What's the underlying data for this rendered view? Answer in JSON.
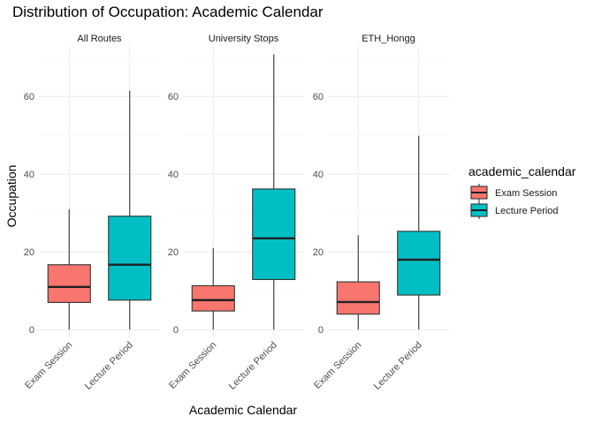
{
  "chart_data": {
    "type": "boxplot",
    "title": "Distribution of Occupation: Academic Calendar",
    "xlabel": "Academic Calendar",
    "ylabel": "Occupation",
    "ylim": [
      -2,
      73
    ],
    "yticks": [
      0,
      20,
      40,
      60
    ],
    "categories": [
      "Exam Session",
      "Lecture Period"
    ],
    "colors": {
      "Exam Session": "#F8766D",
      "Lecture Period": "#00BFC4"
    },
    "legend": {
      "title": "academic_calendar",
      "entries": [
        "Exam Session",
        "Lecture Period"
      ],
      "position": "right"
    },
    "grid": true,
    "panels": [
      {
        "label": "All Routes",
        "boxes": [
          {
            "category": "Exam Session",
            "min": 0,
            "q1": 7,
            "median": 11,
            "q3": 16.7,
            "max": 31
          },
          {
            "category": "Lecture Period",
            "min": 0,
            "q1": 7.6,
            "median": 16.7,
            "q3": 29.2,
            "max": 61.5
          }
        ]
      },
      {
        "label": "University Stops",
        "boxes": [
          {
            "category": "Exam Session",
            "min": 0,
            "q1": 4.8,
            "median": 7.6,
            "q3": 11.3,
            "max": 21
          },
          {
            "category": "Lecture Period",
            "min": 0,
            "q1": 12.9,
            "median": 23.5,
            "q3": 36.2,
            "max": 70.8
          }
        ]
      },
      {
        "label": "ETH_Hongg",
        "boxes": [
          {
            "category": "Exam Session",
            "min": 0,
            "q1": 4,
            "median": 7.1,
            "q3": 12.3,
            "max": 24.3
          },
          {
            "category": "Lecture Period",
            "min": 0,
            "q1": 8.9,
            "median": 18,
            "q3": 25.3,
            "max": 49.9
          }
        ]
      }
    ]
  }
}
